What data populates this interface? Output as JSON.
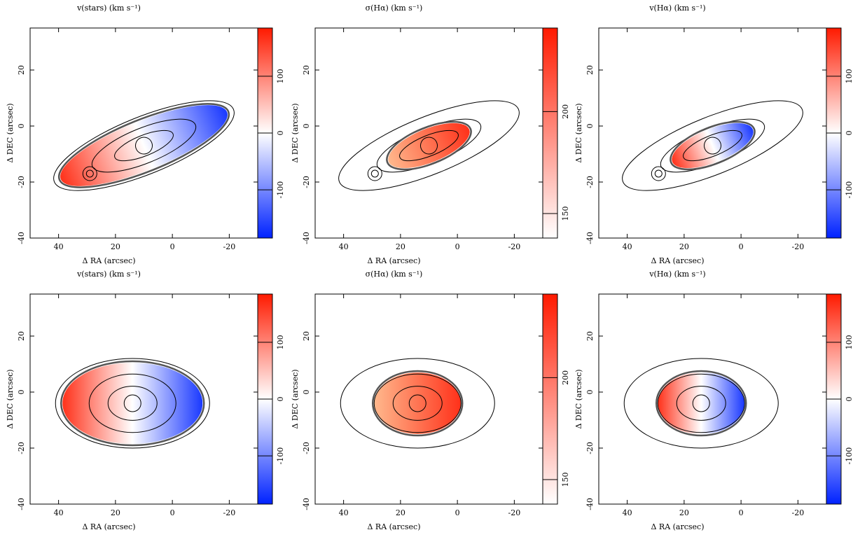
{
  "chart_data": [
    {
      "type": "image",
      "title": "v(stars)  (km s⁻¹)",
      "xlabel": "Δ RA (arcsec)",
      "ylabel": "Δ DEC (arcsec)",
      "xlim": [
        50,
        -30
      ],
      "ylim": [
        -40,
        35
      ],
      "xticks": [
        40,
        20,
        0,
        -20
      ],
      "yticks": [
        -40,
        -20,
        0,
        20
      ],
      "clim": [
        -185,
        185
      ],
      "cticks": [
        -100,
        0,
        100
      ],
      "colormap": [
        "#0022ff",
        "#ffffff",
        "#ff1a00"
      ]
    },
    {
      "type": "image",
      "title": "σ(Hα)  (km s⁻¹)",
      "xlabel": "Δ RA (arcsec)",
      "ylabel": "Δ DEC (arcsec)",
      "xlim": [
        50,
        -30
      ],
      "ylim": [
        -40,
        35
      ],
      "xticks": [
        40,
        20,
        0,
        -20
      ],
      "yticks": [
        -40,
        -20,
        0,
        20
      ],
      "clim": [
        138,
        241
      ],
      "cticks": [
        150,
        200
      ],
      "colormap": [
        "#ffffff",
        "#ff1a00"
      ]
    },
    {
      "type": "image",
      "title": "v(Hα)  (km s⁻¹)",
      "xlabel": "Δ RA (arcsec)",
      "ylabel": "Δ DEC (arcsec)",
      "xlim": [
        50,
        -30
      ],
      "ylim": [
        -40,
        35
      ],
      "xticks": [
        40,
        20,
        0,
        -20
      ],
      "yticks": [
        -40,
        -20,
        0,
        20
      ],
      "clim": [
        -185,
        185
      ],
      "cticks": [
        -100,
        0,
        100
      ],
      "colormap": [
        "#0022ff",
        "#ffffff",
        "#ff1a00"
      ]
    },
    {
      "type": "image",
      "title": "v(stars)  (km s⁻¹)",
      "xlabel": "Δ RA (arcsec)",
      "ylabel": "Δ DEC (arcsec)",
      "xlim": [
        50,
        -30
      ],
      "ylim": [
        -40,
        35
      ],
      "xticks": [
        40,
        20,
        0,
        -20
      ],
      "yticks": [
        -40,
        -20,
        0,
        20
      ],
      "clim": [
        -185,
        185
      ],
      "cticks": [
        -100,
        0,
        100
      ],
      "colormap": [
        "#0022ff",
        "#ffffff",
        "#ff1a00"
      ]
    },
    {
      "type": "image",
      "title": "σ(Hα)  (km s⁻¹)",
      "xlabel": "Δ RA (arcsec)",
      "ylabel": "Δ DEC (arcsec)",
      "xlim": [
        50,
        -30
      ],
      "ylim": [
        -40,
        35
      ],
      "xticks": [
        40,
        20,
        0,
        -20
      ],
      "yticks": [
        -40,
        -20,
        0,
        20
      ],
      "clim": [
        138,
        241
      ],
      "cticks": [
        150,
        200
      ],
      "colormap": [
        "#ffffff",
        "#ff1a00"
      ]
    },
    {
      "type": "image",
      "title": "v(Hα)  (km s⁻¹)",
      "xlabel": "Δ RA (arcsec)",
      "ylabel": "Δ DEC (arcsec)",
      "xlim": [
        50,
        -30
      ],
      "ylim": [
        -40,
        35
      ],
      "xticks": [
        40,
        20,
        0,
        -20
      ],
      "yticks": [
        -40,
        -20,
        0,
        20
      ],
      "clim": [
        -185,
        185
      ],
      "cticks": [
        -100,
        0,
        100
      ],
      "colormap": [
        "#0022ff",
        "#ffffff",
        "#ff1a00"
      ]
    }
  ]
}
